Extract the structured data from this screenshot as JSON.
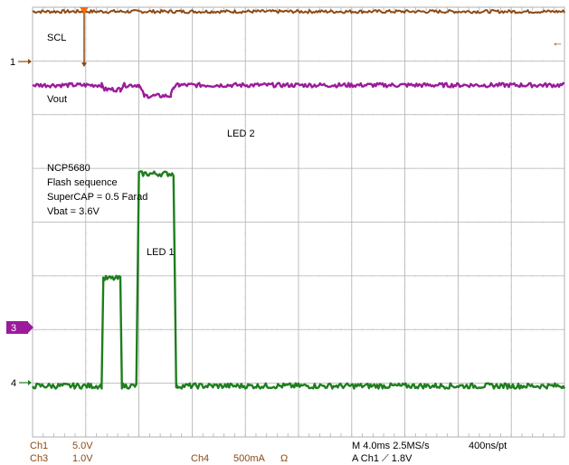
{
  "chart_data": {
    "type": "line",
    "title": "",
    "xlabel": "",
    "ylabel": "",
    "grid": true,
    "divisions": {
      "x": 10,
      "y": 8
    },
    "x_unit": "div",
    "y_unit": "div",
    "xlim": [
      0,
      10
    ],
    "ylim": [
      0,
      8
    ],
    "annotations": {
      "scl": "SCL",
      "vout": "Vout",
      "led1": "LED 1",
      "led2": "LED 2",
      "note": [
        "NCP5680",
        "Flash sequence",
        "SuperCAP = 0.5 Farad",
        "Vbat = 3.6V"
      ]
    },
    "series": [
      {
        "name": "SCL",
        "color": "#8B4A14",
        "x": [
          0,
          10
        ],
        "y": [
          7.92,
          7.92
        ]
      },
      {
        "name": "Vout",
        "color": "#9B1B9B",
        "x": [
          0,
          1.3,
          1.35,
          1.65,
          1.7,
          2.0,
          2.1,
          2.6,
          2.65,
          2.75,
          10
        ],
        "y": [
          6.55,
          6.55,
          6.47,
          6.47,
          6.55,
          6.55,
          6.35,
          6.35,
          6.52,
          6.55,
          6.55
        ]
      },
      {
        "name": "Ch4",
        "color": "#1E7E1E",
        "x": [
          0,
          1.3,
          1.33,
          1.65,
          1.68,
          1.95,
          2.0,
          2.65,
          2.7,
          10
        ],
        "y": [
          0.95,
          0.95,
          2.95,
          2.95,
          0.95,
          0.95,
          4.9,
          4.9,
          0.95,
          0.95
        ]
      }
    ]
  },
  "markers": {
    "ch1": "1",
    "ch3": "3",
    "ch4": "4"
  },
  "status": {
    "ch1_label": "Ch1",
    "ch1_scale": "5.0V",
    "ch3_label": "Ch3",
    "ch3_scale": "1.0V",
    "ch4_label": "Ch4",
    "ch4_scale": "500mA",
    "ch4_coupling": "Ω",
    "timebase": "M 4.0ms 2.5MS/s",
    "record": "400ns/pt",
    "trigger": "A  Ch1  ⟋  1.8V"
  },
  "colors": {
    "ch1": "#8B4A14",
    "ch3": "#9B1B9B",
    "ch4": "#1E7E1E",
    "grid": "#b0b0b0",
    "status_text": "#8B4A14",
    "trigger": "#FF6A00"
  }
}
